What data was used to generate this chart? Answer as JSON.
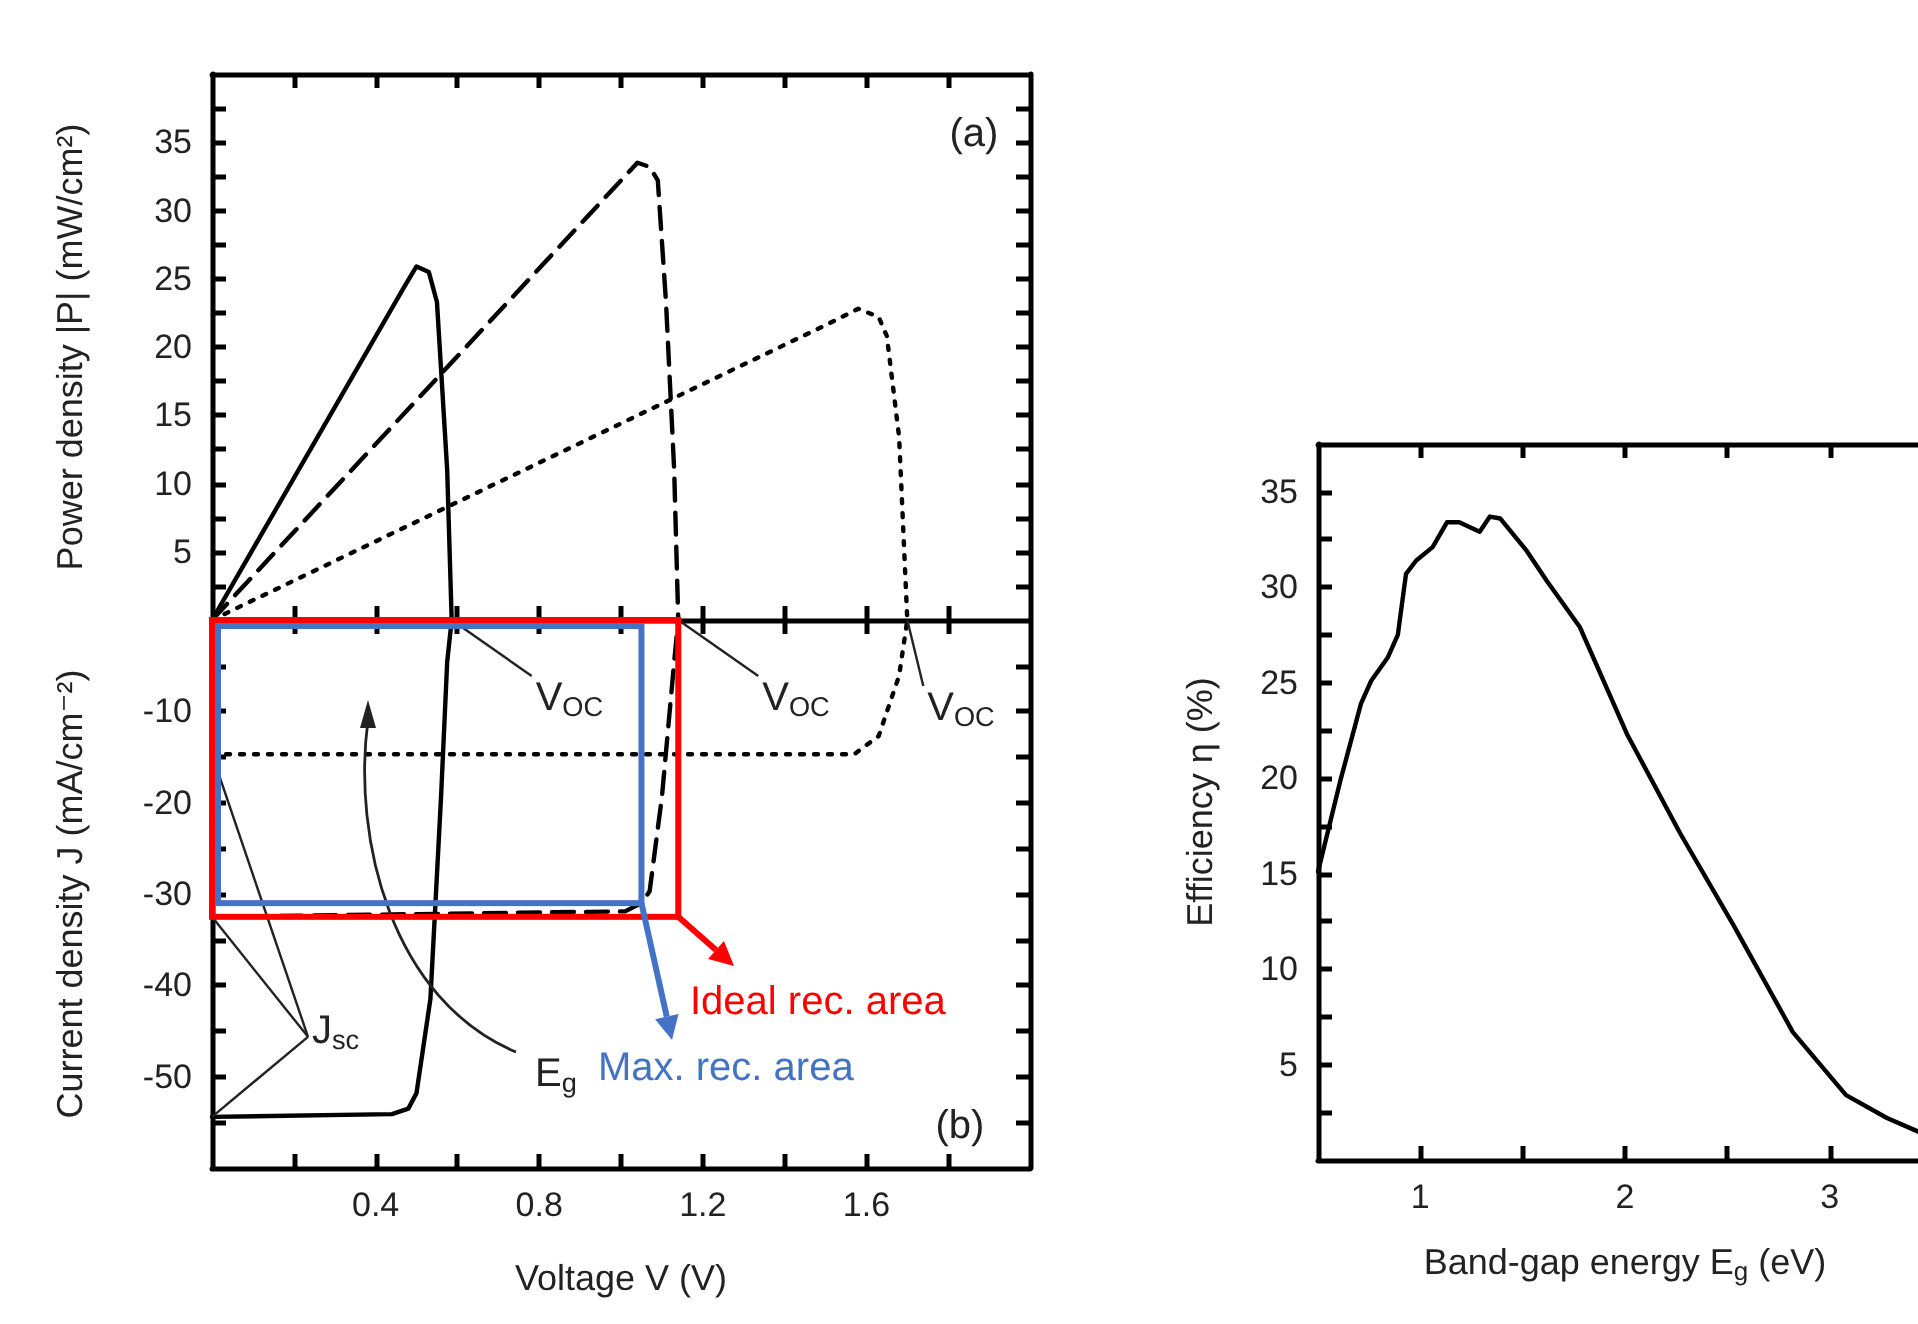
{
  "chart_data": [
    {
      "type": "line",
      "ylabel": "Power density |P| (mW/cm²)",
      "xlim": [
        0,
        2
      ],
      "xticks": [
        {
          "value": 0.2,
          "label": null
        },
        {
          "value": 0.4,
          "label": null
        },
        {
          "value": 0.6,
          "label": null
        },
        {
          "value": 0.8,
          "label": null
        },
        {
          "value": 1.0,
          "label": null
        },
        {
          "value": 1.2,
          "label": null
        },
        {
          "value": 1.4,
          "label": null
        },
        {
          "value": 1.6,
          "label": null
        },
        {
          "value": 1.8,
          "label": null
        }
      ],
      "ylim": [
        0,
        40
      ],
      "yticks": [
        {
          "value": 2.5,
          "label": null
        },
        5,
        {
          "value": 7.5,
          "label": null
        },
        10,
        {
          "value": 12.5,
          "label": null
        },
        15,
        {
          "value": 17.5,
          "label": null
        },
        20,
        {
          "value": 22.5,
          "label": null
        },
        25,
        {
          "value": 27.5,
          "label": null
        },
        30,
        {
          "value": 32.5,
          "label": null
        },
        35,
        {
          "value": 37.5,
          "label": null
        }
      ],
      "tick_labels": "y",
      "annotations": [
        "(a)"
      ],
      "series": [
        {
          "color": "#000000",
          "line_style": "solid",
          "x": [
            0,
            0.47,
            0.5,
            0.53,
            0.55,
            0.575,
            0.586
          ],
          "values": [
            0,
            24.4,
            25.9,
            25.5,
            23.3,
            11,
            0
          ]
        },
        {
          "color": "#000000",
          "line_style": "dashed",
          "x": [
            0,
            1.0,
            1.04,
            1.07,
            1.09,
            1.11,
            1.13,
            1.14
          ],
          "values": [
            0,
            32.2,
            33.5,
            33.2,
            32.2,
            23.3,
            11,
            0
          ]
        },
        {
          "color": "#000000",
          "line_style": "dotted",
          "x": [
            0,
            1.5,
            1.58,
            1.63,
            1.65,
            1.68,
            1.7
          ],
          "values": [
            0,
            21.6,
            22.8,
            22.2,
            20.8,
            13.4,
            0
          ]
        }
      ]
    },
    {
      "type": "line",
      "xlabel": "Voltage V (V)",
      "ylabel": "Current density J (mA/cm⁻²)",
      "xlim": [
        0,
        2
      ],
      "xticks": [
        {
          "value": 0.2,
          "label": null
        },
        0.4,
        {
          "value": 0.6,
          "label": null
        },
        0.8,
        {
          "value": 1.0,
          "label": null
        },
        1.2,
        {
          "value": 1.4,
          "label": null
        },
        1.6,
        {
          "value": 1.8,
          "label": null
        }
      ],
      "ylim": [
        -60,
        0
      ],
      "yticks": [
        {
          "value": -55,
          "label": null
        },
        -50,
        {
          "value": -45,
          "label": null
        },
        -40,
        {
          "value": -35,
          "label": null
        },
        -30,
        {
          "value": -25,
          "label": null
        },
        -20,
        {
          "value": -15,
          "label": null
        },
        -10,
        {
          "value": -5,
          "label": null
        }
      ],
      "annotations": [
        "(b)",
        {
          "text": "V$_{OC}$",
          "x": 0.586,
          "y": 0
        },
        {
          "text": "V$_{OC}$",
          "x": 1.14,
          "y": 0
        },
        {
          "text": "V$_{OC}$",
          "x": 1.7,
          "y": 0
        },
        {
          "text": "J$_{sc}$",
          "x": 0,
          "y": -54.4
        },
        "E$_{g}$",
        "Ideal rec. area",
        {
          "text": "Max. rec. area",
          "x": 1.05,
          "y": -31
        }
      ],
      "series": [
        {
          "color": "#000000",
          "line_style": "solid",
          "x": [
            0,
            0.44,
            0.48,
            0.5,
            0.534,
            0.56,
            0.575,
            0.586
          ],
          "values": [
            -54.4,
            -54.1,
            -53.5,
            -51.8,
            -41.5,
            -19.4,
            -4.6,
            0
          ]
        },
        {
          "color": "#000000",
          "line_style": "dashed",
          "x": [
            0,
            1.01,
            1.05,
            1.07,
            1.1,
            1.13,
            1.14
          ],
          "values": [
            -32.5,
            -31.9,
            -31,
            -29.7,
            -19.4,
            -4.6,
            0
          ]
        },
        {
          "color": "#000000",
          "line_style": "dotted",
          "x": [
            0,
            1.57,
            1.63,
            1.68,
            1.7
          ],
          "values": [
            -14.7,
            -14.7,
            -12.7,
            -6.1,
            0
          ]
        }
      ]
    },
    {
      "type": "line",
      "xlabel": "Band-gap energy E$_{g}$ (eV)",
      "ylabel": "Efficiency η (%)",
      "xlim": [
        0.5,
        3.5
      ],
      "xticks": [
        1,
        {
          "value": 1.5,
          "label": null
        },
        2,
        {
          "value": 2.5,
          "label": null
        },
        3
      ],
      "ylim": [
        0,
        37.5
      ],
      "yticks": [
        {
          "value": 2.5,
          "label": null
        },
        5,
        {
          "value": 7.5,
          "label": null
        },
        10,
        {
          "value": 12.5,
          "label": null
        },
        15,
        {
          "value": 17.5,
          "label": null
        },
        20,
        {
          "value": 22.5,
          "label": null
        },
        25,
        {
          "value": 27.5,
          "label": null
        },
        30,
        {
          "value": 32.5,
          "label": null
        },
        35
      ],
      "series": [
        {
          "color": "#000000",
          "line_style": "solid",
          "x": [
            0.5,
            0.61,
            0.71,
            0.76,
            0.84,
            0.89,
            0.93,
            0.98,
            1.06,
            1.13,
            1.19,
            1.29,
            1.34,
            1.39,
            1.52,
            1.62,
            1.78,
            2.01,
            2.27,
            2.53,
            2.82,
            3.08,
            3.28,
            3.43
          ],
          "values": [
            15.1,
            19.9,
            23.9,
            25.1,
            26.3,
            27.5,
            30.7,
            31.4,
            32.1,
            33.4,
            33.4,
            32.9,
            33.7,
            33.6,
            31.9,
            30.3,
            27.9,
            22.3,
            17.1,
            12.3,
            6.7,
            3.4,
            2.2,
            1.5
          ]
        }
      ]
    }
  ]
}
